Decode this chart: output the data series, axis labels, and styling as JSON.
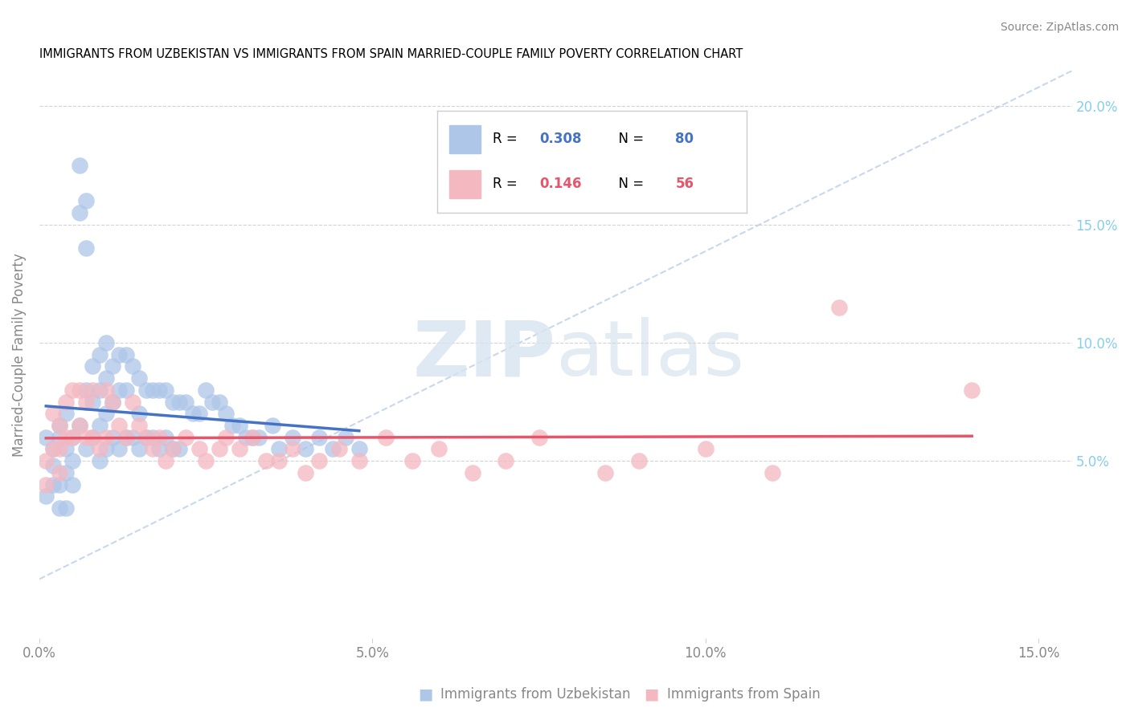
{
  "title": "IMMIGRANTS FROM UZBEKISTAN VS IMMIGRANTS FROM SPAIN MARRIED-COUPLE FAMILY POVERTY CORRELATION CHART",
  "source": "Source: ZipAtlas.com",
  "ylabel": "Married-Couple Family Poverty",
  "xlim": [
    0.0,
    0.155
  ],
  "ylim": [
    -0.025,
    0.215
  ],
  "xticks": [
    0.0,
    0.05,
    0.1,
    0.15
  ],
  "xtick_labels": [
    "0.0%",
    "5.0%",
    "10.0%",
    "15.0%"
  ],
  "ytick_labels": [
    "5.0%",
    "10.0%",
    "15.0%",
    "20.0%"
  ],
  "yticks": [
    0.05,
    0.1,
    0.15,
    0.2
  ],
  "legend_labels": [
    "Immigrants from Uzbekistan",
    "Immigrants from Spain"
  ],
  "uzbekistan_color": "#aec6e8",
  "spain_color": "#f4b8c1",
  "uzbekistan_line_color": "#4472c4",
  "spain_line_color": "#e8546a",
  "R_uzbekistan": 0.308,
  "N_uzbekistan": 80,
  "R_spain": 0.146,
  "N_spain": 56,
  "uzbekistan_x": [
    0.001,
    0.001,
    0.002,
    0.002,
    0.002,
    0.003,
    0.003,
    0.003,
    0.003,
    0.004,
    0.004,
    0.004,
    0.004,
    0.005,
    0.005,
    0.005,
    0.006,
    0.006,
    0.006,
    0.007,
    0.007,
    0.007,
    0.007,
    0.008,
    0.008,
    0.008,
    0.009,
    0.009,
    0.009,
    0.009,
    0.01,
    0.01,
    0.01,
    0.01,
    0.011,
    0.011,
    0.011,
    0.012,
    0.012,
    0.012,
    0.013,
    0.013,
    0.013,
    0.014,
    0.014,
    0.015,
    0.015,
    0.015,
    0.016,
    0.016,
    0.017,
    0.017,
    0.018,
    0.018,
    0.019,
    0.019,
    0.02,
    0.02,
    0.021,
    0.021,
    0.022,
    0.023,
    0.024,
    0.025,
    0.026,
    0.027,
    0.028,
    0.029,
    0.03,
    0.031,
    0.032,
    0.033,
    0.035,
    0.036,
    0.038,
    0.04,
    0.042,
    0.044,
    0.046,
    0.048
  ],
  "uzbekistan_y": [
    0.035,
    0.06,
    0.055,
    0.048,
    0.04,
    0.065,
    0.06,
    0.04,
    0.03,
    0.07,
    0.055,
    0.045,
    0.03,
    0.06,
    0.05,
    0.04,
    0.175,
    0.155,
    0.065,
    0.16,
    0.14,
    0.08,
    0.055,
    0.09,
    0.075,
    0.06,
    0.095,
    0.08,
    0.065,
    0.05,
    0.1,
    0.085,
    0.07,
    0.055,
    0.09,
    0.075,
    0.06,
    0.095,
    0.08,
    0.055,
    0.095,
    0.08,
    0.06,
    0.09,
    0.06,
    0.085,
    0.07,
    0.055,
    0.08,
    0.06,
    0.08,
    0.06,
    0.08,
    0.055,
    0.08,
    0.06,
    0.075,
    0.055,
    0.075,
    0.055,
    0.075,
    0.07,
    0.07,
    0.08,
    0.075,
    0.075,
    0.07,
    0.065,
    0.065,
    0.06,
    0.06,
    0.06,
    0.065,
    0.055,
    0.06,
    0.055,
    0.06,
    0.055,
    0.06,
    0.055
  ],
  "spain_x": [
    0.001,
    0.001,
    0.002,
    0.002,
    0.003,
    0.003,
    0.003,
    0.004,
    0.004,
    0.005,
    0.005,
    0.006,
    0.006,
    0.007,
    0.007,
    0.008,
    0.008,
    0.009,
    0.01,
    0.01,
    0.011,
    0.012,
    0.013,
    0.014,
    0.015,
    0.016,
    0.017,
    0.018,
    0.019,
    0.02,
    0.022,
    0.024,
    0.025,
    0.027,
    0.028,
    0.03,
    0.032,
    0.034,
    0.036,
    0.038,
    0.04,
    0.042,
    0.045,
    0.048,
    0.052,
    0.056,
    0.06,
    0.065,
    0.07,
    0.075,
    0.085,
    0.09,
    0.1,
    0.11,
    0.12,
    0.14
  ],
  "spain_y": [
    0.05,
    0.04,
    0.07,
    0.055,
    0.065,
    0.055,
    0.045,
    0.075,
    0.06,
    0.08,
    0.06,
    0.08,
    0.065,
    0.075,
    0.06,
    0.08,
    0.06,
    0.055,
    0.08,
    0.06,
    0.075,
    0.065,
    0.06,
    0.075,
    0.065,
    0.06,
    0.055,
    0.06,
    0.05,
    0.055,
    0.06,
    0.055,
    0.05,
    0.055,
    0.06,
    0.055,
    0.06,
    0.05,
    0.05,
    0.055,
    0.045,
    0.05,
    0.055,
    0.05,
    0.06,
    0.05,
    0.055,
    0.045,
    0.05,
    0.06,
    0.045,
    0.05,
    0.055,
    0.045,
    0.115,
    0.08
  ]
}
